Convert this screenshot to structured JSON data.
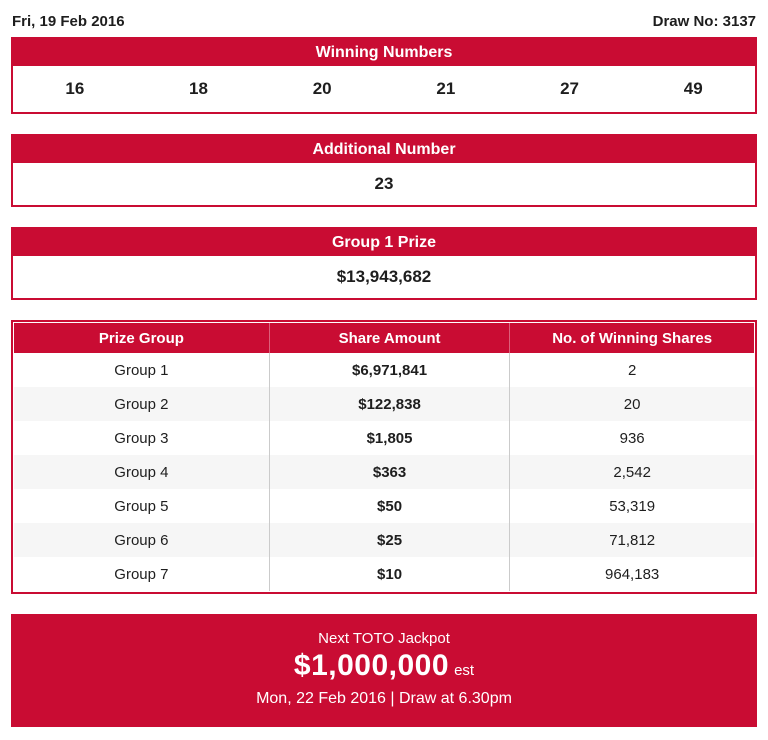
{
  "meta": {
    "date": "Fri, 19 Feb 2016",
    "draw_no": "Draw No: 3137"
  },
  "winning_numbers": {
    "title": "Winning Numbers",
    "numbers": [
      "16",
      "18",
      "20",
      "21",
      "27",
      "49"
    ]
  },
  "additional_number": {
    "title": "Additional Number",
    "value": "23"
  },
  "group1_prize": {
    "title": "Group 1 Prize",
    "value": "$13,943,682"
  },
  "prize_table": {
    "columns": [
      "Prize Group",
      "Share Amount",
      "No. of Winning Shares"
    ],
    "rows": [
      {
        "group": "Group 1",
        "share_amount": "$6,971,841",
        "winning_shares": "2"
      },
      {
        "group": "Group 2",
        "share_amount": "$122,838",
        "winning_shares": "20"
      },
      {
        "group": "Group 3",
        "share_amount": "$1,805",
        "winning_shares": "936"
      },
      {
        "group": "Group 4",
        "share_amount": "$363",
        "winning_shares": "2,542"
      },
      {
        "group": "Group 5",
        "share_amount": "$50",
        "winning_shares": "53,319"
      },
      {
        "group": "Group 6",
        "share_amount": "$25",
        "winning_shares": "71,812"
      },
      {
        "group": "Group 7",
        "share_amount": "$10",
        "winning_shares": "964,183"
      }
    ]
  },
  "next_jackpot": {
    "title": "Next TOTO Jackpot",
    "amount": "$1,000,000",
    "suffix": "est",
    "details": "Mon, 22 Feb 2016 | Draw at 6.30pm"
  },
  "colors": {
    "accent_red": "#C90C33",
    "row_alt": "#f6f6f6",
    "divider": "#cbcbcb",
    "text": "#1e1e1e"
  }
}
